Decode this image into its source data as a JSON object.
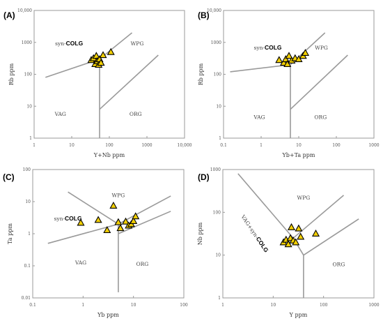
{
  "chart_data": [
    {
      "type": "scatter",
      "panel": "(A)",
      "xlabel": "Y+Nb  ppm",
      "ylabel": "Rb ppm",
      "xscale": "log",
      "yscale": "log",
      "xlim": [
        1,
        10000
      ],
      "ylim": [
        1,
        10000
      ],
      "xticks": [
        "1",
        "10",
        "100",
        "1000",
        "10,000"
      ],
      "yticks": [
        "1",
        "10",
        "100",
        "1000",
        "10,000"
      ],
      "fields": [
        {
          "text": "syn-",
          "bold": "COLG",
          "x": 8.5,
          "y": 800
        },
        {
          "text": "WPG",
          "x": 550,
          "y": 800
        },
        {
          "text": "VAG",
          "x": 5,
          "y": 5
        },
        {
          "text": "ORG",
          "x": 500,
          "y": 5
        }
      ],
      "boundaries": [
        [
          [
            2,
            80
          ],
          [
            55,
            300
          ],
          [
            400,
            2000
          ]
        ],
        [
          [
            55,
            1
          ],
          [
            55,
            300
          ]
        ],
        [
          [
            55,
            8
          ],
          [
            2000,
            400
          ]
        ]
      ],
      "points": [
        [
          33,
          280
        ],
        [
          38,
          320
        ],
        [
          42,
          210
        ],
        [
          45,
          380
        ],
        [
          48,
          260
        ],
        [
          52,
          200
        ],
        [
          55,
          300
        ],
        [
          60,
          230
        ],
        [
          68,
          400
        ],
        [
          110,
          500
        ]
      ]
    },
    {
      "type": "scatter",
      "panel": "(B)",
      "xlabel": "Yb+Ta  ppm",
      "ylabel": "Rb ppm",
      "xscale": "log",
      "yscale": "log",
      "xlim": [
        0.1,
        1000
      ],
      "ylim": [
        1,
        10000
      ],
      "xticks": [
        "0.1",
        "1",
        "10",
        "100",
        "1000"
      ],
      "yticks": [
        "1",
        "10",
        "100",
        "1000",
        "10,000"
      ],
      "fields": [
        {
          "text": "syn-",
          "bold": "COLG",
          "x": 1.5,
          "y": 600
        },
        {
          "text": "WPG",
          "x": 40,
          "y": 600
        },
        {
          "text": "VAG",
          "x": 0.9,
          "y": 4
        },
        {
          "text": "ORG",
          "x": 38,
          "y": 4
        }
      ],
      "boundaries": [
        [
          [
            0.15,
            120
          ],
          [
            6,
            200
          ],
          [
            50,
            2000
          ]
        ],
        [
          [
            6,
            1
          ],
          [
            6,
            200
          ]
        ],
        [
          [
            6,
            8
          ],
          [
            200,
            400
          ]
        ]
      ],
      "points": [
        [
          3,
          280
        ],
        [
          4,
          230
        ],
        [
          4.5,
          300
        ],
        [
          5,
          210
        ],
        [
          5.5,
          380
        ],
        [
          6.5,
          270
        ],
        [
          8,
          320
        ],
        [
          10,
          300
        ],
        [
          13,
          380
        ],
        [
          15,
          470
        ]
      ]
    },
    {
      "type": "scatter",
      "panel": "(C)",
      "xlabel": "Yb ppm",
      "ylabel": "Ta ppm",
      "xscale": "log",
      "yscale": "log",
      "xlim": [
        0.1,
        100
      ],
      "ylim": [
        0.01,
        100
      ],
      "xticks": [
        "0.1",
        "1",
        "10",
        "100"
      ],
      "yticks": [
        "0.01",
        "0.1",
        "1",
        "10",
        "100"
      ],
      "fields": [
        {
          "text": "syn-",
          "bold": "COLG",
          "x": 0.5,
          "y": 2.6
        },
        {
          "text": "WPG",
          "x": 5,
          "y": 14
        },
        {
          "text": "VAG",
          "x": 0.9,
          "y": 0.11
        },
        {
          "text": "ORG",
          "x": 15,
          "y": 0.1
        }
      ],
      "boundaries": [
        [
          [
            0.2,
            0.5
          ],
          [
            5,
            2
          ],
          [
            55,
            15
          ]
        ],
        [
          [
            0.5,
            20
          ],
          [
            5,
            2
          ]
        ],
        [
          [
            5,
            2
          ],
          [
            5,
            0.015
          ]
        ],
        [
          [
            5,
            1
          ],
          [
            55,
            5
          ]
        ]
      ],
      "points": [
        [
          0.9,
          2.2
        ],
        [
          2,
          2.7
        ],
        [
          3,
          1.3
        ],
        [
          4,
          7.5
        ],
        [
          5,
          2.3
        ],
        [
          5.5,
          1.5
        ],
        [
          7,
          2.4
        ],
        [
          8,
          1.8
        ],
        [
          9,
          2.0
        ],
        [
          10,
          2.5
        ],
        [
          11,
          3.5
        ]
      ]
    },
    {
      "type": "scatter",
      "panel": "(D)",
      "xlabel": "Y  ppm",
      "ylabel": "Nb  ppm",
      "xscale": "log",
      "yscale": "log",
      "xlim": [
        1,
        1000
      ],
      "ylim": [
        1,
        1000
      ],
      "xticks": [
        "1",
        "10",
        "100",
        "1000"
      ],
      "yticks": [
        "1",
        "10",
        "100",
        "1000"
      ],
      "fields": [
        {
          "text": "WPG",
          "x": 40,
          "y": 200
        },
        {
          "text": "VAG+syn-",
          "bold": "COLG",
          "x": 4,
          "y": 30,
          "rotate": 56
        },
        {
          "text": "ORG",
          "x": 200,
          "y": 5.5
        }
      ],
      "boundaries": [
        [
          [
            2,
            800
          ],
          [
            25,
            25
          ],
          [
            250,
            250
          ]
        ],
        [
          [
            25,
            25
          ],
          [
            40,
            10
          ],
          [
            500,
            70
          ]
        ],
        [
          [
            40,
            10
          ],
          [
            40,
            1
          ]
        ]
      ],
      "points": [
        [
          16,
          20
        ],
        [
          18,
          23
        ],
        [
          20,
          18
        ],
        [
          22,
          25
        ],
        [
          23,
          45
        ],
        [
          25,
          22
        ],
        [
          28,
          20
        ],
        [
          32,
          42
        ],
        [
          35,
          27
        ],
        [
          70,
          32
        ]
      ]
    }
  ]
}
